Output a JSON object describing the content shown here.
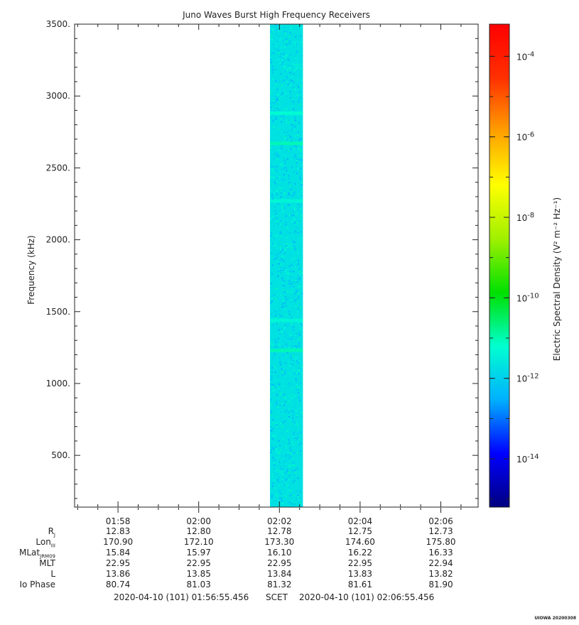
{
  "chart_data": {
    "type": "heatmap",
    "title": "Juno Waves Burst High Frequency Receivers",
    "ylabel": "Frequency (kHz)",
    "ylim": [
      140,
      3500
    ],
    "yticks": [
      500,
      1000,
      1500,
      2000,
      2500,
      3000,
      3500
    ],
    "ytick_labels": [
      "500.",
      "1000.",
      "1500.",
      "2000.",
      "2500.",
      "3000.",
      "3500."
    ],
    "xlim": [
      "01:56:55.456",
      "02:06:55.456"
    ],
    "xtick_labels": [
      "01:58",
      "02:00",
      "02:02",
      "02:04",
      "02:06"
    ],
    "data_interval": [
      "02:01:46",
      "02:02:35"
    ],
    "background_level_log10": -11.7,
    "emission_lines": [
      {
        "frequency_khz": 1230,
        "log10_level": -11.0
      },
      {
        "frequency_khz": 1440,
        "log10_level": -11.3
      },
      {
        "frequency_khz": 2270,
        "log10_level": -11.3
      },
      {
        "frequency_khz": 2670,
        "log10_level": -11.0
      },
      {
        "frequency_khz": 2880,
        "log10_level": -11.2
      }
    ],
    "colorbar": {
      "label": "Electric Spectral Density (V² m⁻² Hz⁻¹)",
      "scale": "log",
      "range_log10": [
        -15.2,
        -3.2
      ],
      "ticks_log10": [
        -14,
        -12,
        -10,
        -8,
        -6,
        -4
      ],
      "colormap": "rainbow",
      "colors": [
        "#000080",
        "#0000ff",
        "#00b0ff",
        "#00ffd0",
        "#00e000",
        "#a0f000",
        "#ffff00",
        "#ffa000",
        "#ff3000",
        "#ff0000"
      ]
    },
    "ephemeris": {
      "rows": [
        {
          "label": "R",
          "sub": "J",
          "values": [
            "12.83",
            "12.80",
            "12.78",
            "12.75",
            "12.73"
          ]
        },
        {
          "label": "Lon",
          "sub": "III",
          "values": [
            "170.90",
            "172.10",
            "173.30",
            "174.60",
            "175.80"
          ]
        },
        {
          "label": "MLat",
          "sub": "JRM09",
          "values": [
            "15.84",
            "15.97",
            "16.10",
            "16.22",
            "16.33"
          ]
        },
        {
          "label": "MLT",
          "sub": "",
          "values": [
            "22.95",
            "22.95",
            "22.95",
            "22.95",
            "22.94"
          ]
        },
        {
          "label": "L",
          "sub": "",
          "values": [
            "13.86",
            "13.85",
            "13.84",
            "13.83",
            "13.82"
          ]
        },
        {
          "label": "Io Phase",
          "sub": "",
          "values": [
            "80.74",
            "81.03",
            "81.32",
            "81.61",
            "81.90"
          ]
        }
      ]
    }
  },
  "footer": {
    "start": "2020-04-10 (101) 01:56:55.456",
    "scet": "SCET",
    "end": "2020-04-10 (101) 02:06:55.456"
  },
  "credit": "UIOWA 20200308"
}
